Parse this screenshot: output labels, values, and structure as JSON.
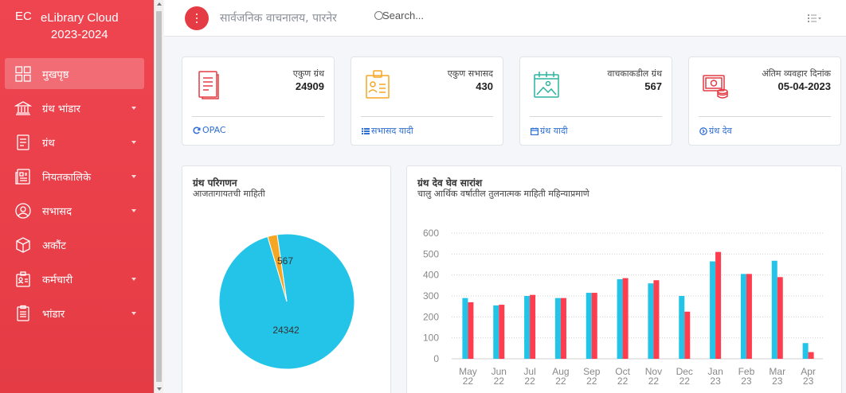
{
  "brand": {
    "abbr": "EC",
    "name_line1": "eLibrary Cloud",
    "name_line2": "2023-2024"
  },
  "sidebar": {
    "items": [
      {
        "label": "मुखपृष्ठ",
        "icon": "dashboard-grid-icon",
        "active": true,
        "caret": false
      },
      {
        "label": "ग्रंथ भांडार",
        "icon": "library-building-icon",
        "active": false,
        "caret": true
      },
      {
        "label": "ग्रंथ",
        "icon": "document-icon",
        "active": false,
        "caret": true
      },
      {
        "label": "नियतकालिके",
        "icon": "periodical-icon",
        "active": false,
        "caret": true
      },
      {
        "label": "सभासद",
        "icon": "member-icon",
        "active": false,
        "caret": true
      },
      {
        "label": "अकौंट",
        "icon": "box-icon",
        "active": false,
        "caret": false
      },
      {
        "label": "कर्मचारी",
        "icon": "employee-badge-icon",
        "active": false,
        "caret": true
      },
      {
        "label": "भांडार",
        "icon": "clipboard-icon",
        "active": false,
        "caret": true
      }
    ]
  },
  "topbar": {
    "site_name": "सार्वजनिक वाचनालय, पारनेर",
    "search_placeholder": "Search..."
  },
  "cards": [
    {
      "title": "एकुण ग्रंथ",
      "value": "24909",
      "link": "OPAC",
      "icon": "book-list-icon",
      "link_icon": "refresh-icon"
    },
    {
      "title": "एकुण सभासद",
      "value": "430",
      "link": "सभासद यादी",
      "icon": "member-id-icon",
      "link_icon": "list-icon"
    },
    {
      "title": "वाचकाकडील ग्रंथ",
      "value": "567",
      "link": "ग्रंथ यादी",
      "icon": "picture-icon",
      "link_icon": "calendar-icon"
    },
    {
      "title": "अंतिम व्यवहार दिनांक",
      "value": "05-04-2023",
      "link": "ग्रंथ देव",
      "icon": "money-icon",
      "link_icon": "circle-arrow-icon"
    }
  ],
  "colors": {
    "accent": "#e43b45",
    "cyan": "#24c4e8",
    "red": "#ff3d4e",
    "orange": "#f5a623"
  },
  "chart_data": [
    {
      "type": "pie",
      "title": "ग्रंथ परिगणन",
      "subtitle": "आजतागायतची माहिती",
      "slices": [
        {
          "label": "24342",
          "value": 24342,
          "color": "#24c4e8"
        },
        {
          "label": "567",
          "value": 567,
          "color": "#f5a623"
        }
      ]
    },
    {
      "type": "bar",
      "title": "ग्रंथ देव घेव सारांश",
      "subtitle": "चालु आर्थिक वर्षातील तुलनात्मक माहिती महिन्याप्रमाणे",
      "categories": [
        "May 22",
        "Jun 22",
        "Jul 22",
        "Aug 22",
        "Sep 22",
        "Oct 22",
        "Nov 22",
        "Dec 22",
        "Jan 23",
        "Feb 23",
        "Mar 23",
        "Apr 23"
      ],
      "series": [
        {
          "values": [
            290,
            255,
            300,
            290,
            315,
            380,
            360,
            300,
            465,
            405,
            468,
            75
          ],
          "color": "#24c4e8"
        },
        {
          "values": [
            270,
            258,
            305,
            290,
            315,
            385,
            375,
            225,
            510,
            405,
            390,
            32
          ],
          "color": "#ff3d4e"
        }
      ],
      "yticks": [
        "0",
        "100",
        "200",
        "300",
        "400",
        "500",
        "600"
      ],
      "ylim": [
        0,
        600
      ],
      "grid": true
    }
  ]
}
